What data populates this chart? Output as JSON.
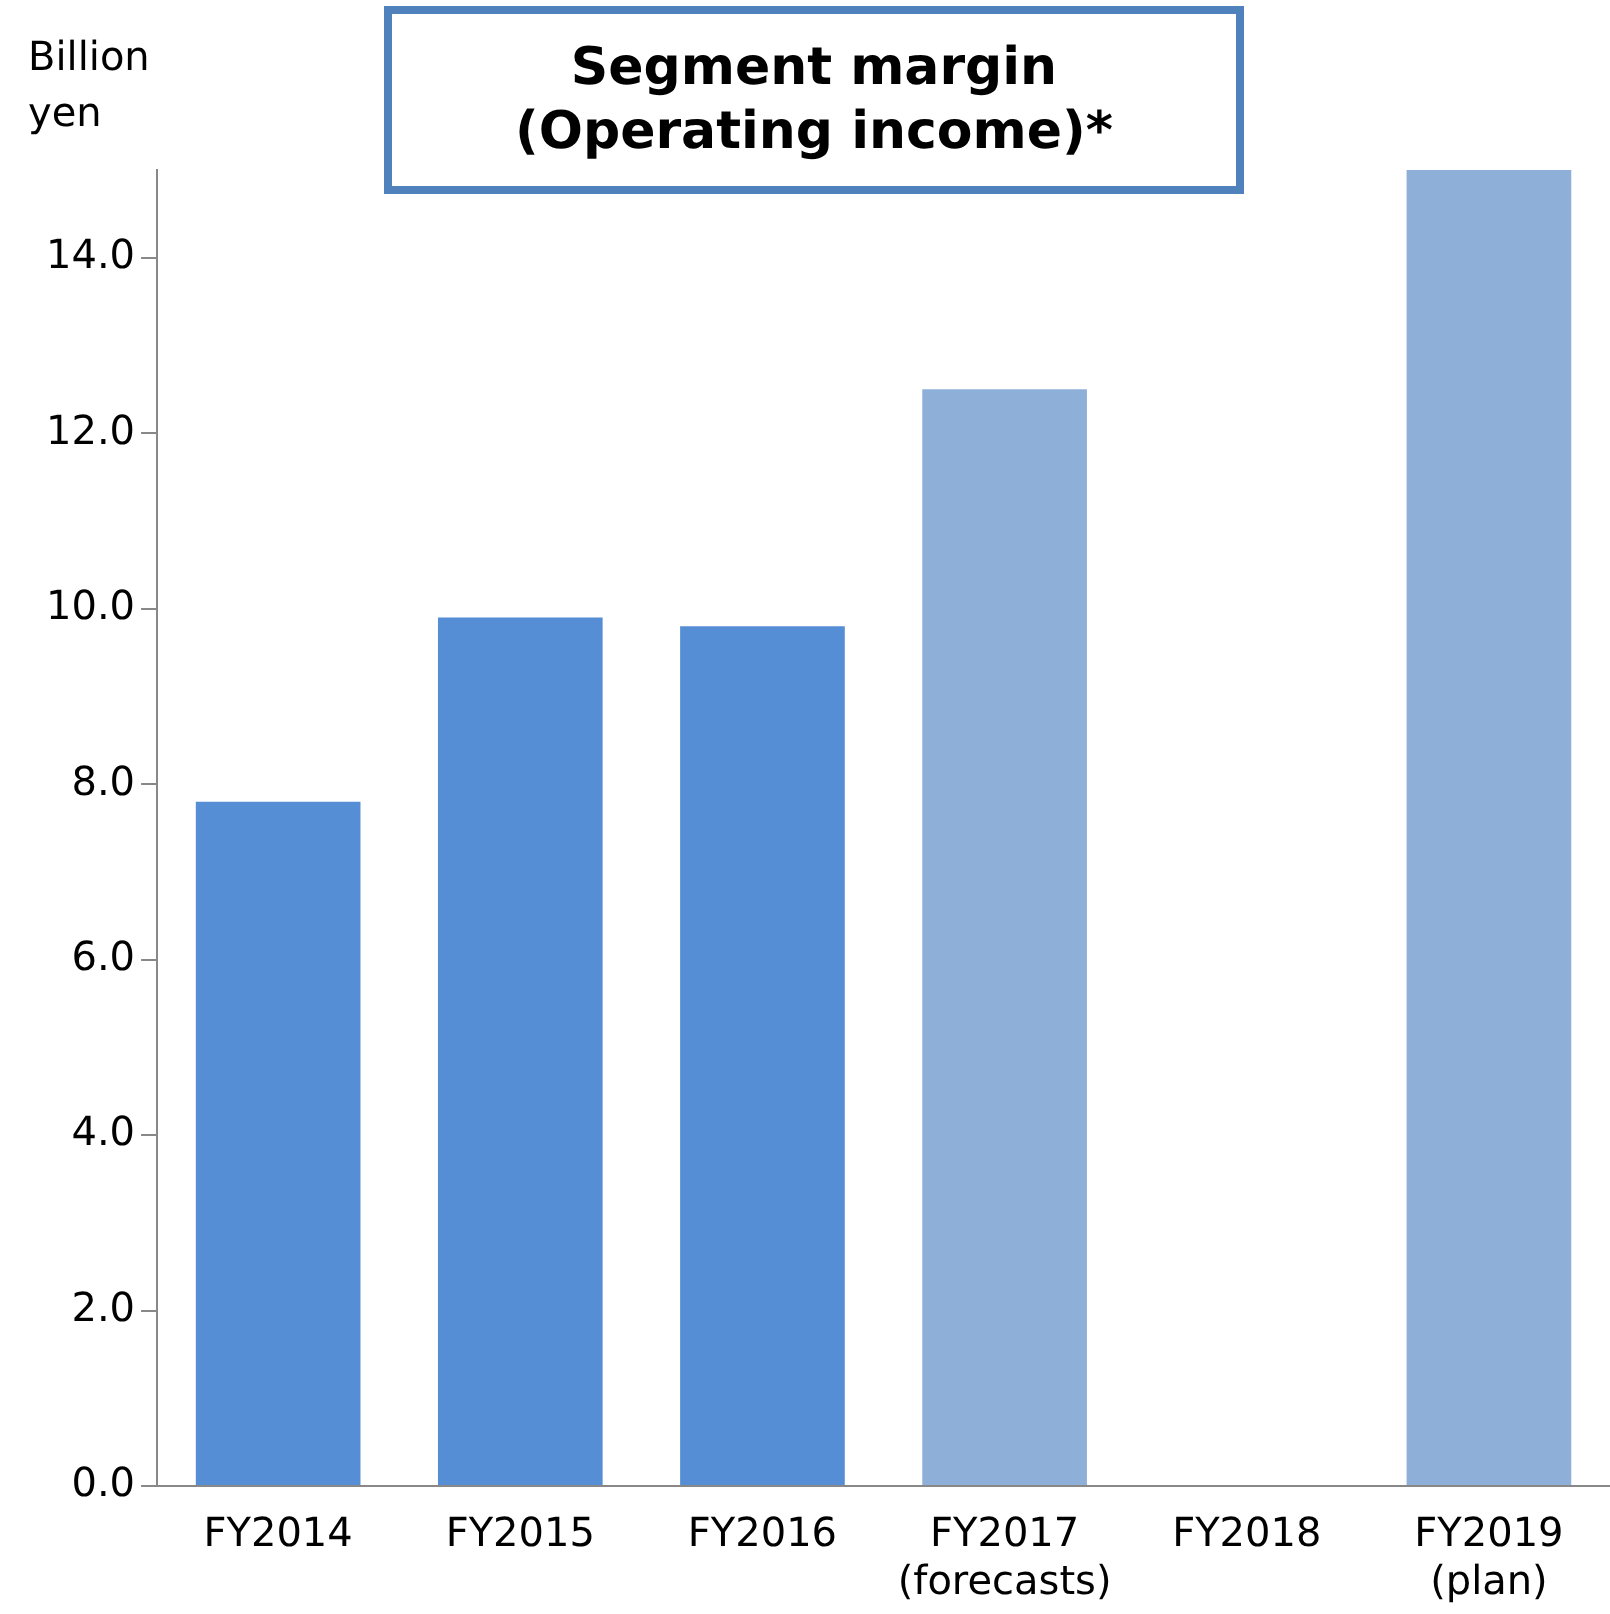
{
  "chart_data": {
    "type": "bar",
    "title": "Segment margin\n(Operating income)*",
    "ylabel": "Billion\nyen",
    "categories": [
      "FY2014",
      "FY2015",
      "FY2016",
      "FY2017\n(forecasts)",
      "FY2018",
      "FY2019\n(plan)"
    ],
    "values": [
      7.8,
      9.9,
      9.8,
      12.5,
      null,
      15.0
    ],
    "colors": [
      "#558ed5",
      "#558ed5",
      "#558ed5",
      "#8eb0d8",
      null,
      "#8eb0d8"
    ],
    "ylim": [
      0,
      15
    ],
    "yticks": [
      {
        "value": 0,
        "label": "0.0"
      },
      {
        "value": 2,
        "label": "2.0"
      },
      {
        "value": 4,
        "label": "4.0"
      },
      {
        "value": 6,
        "label": "6.0"
      },
      {
        "value": 8,
        "label": "8.0"
      },
      {
        "value": 10,
        "label": "10.0"
      },
      {
        "value": 12,
        "label": "12.0"
      },
      {
        "value": 14,
        "label": "14.0"
      }
    ],
    "grid": false,
    "legend": false
  }
}
